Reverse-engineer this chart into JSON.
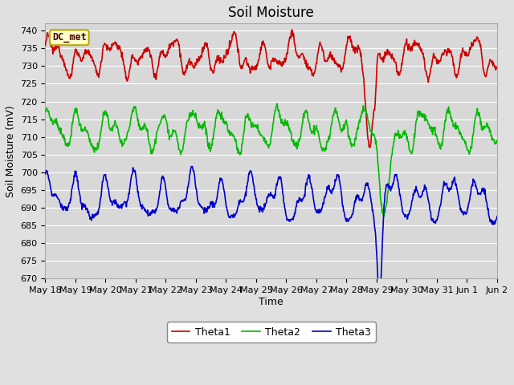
{
  "title": "Soil Moisture",
  "xlabel": "Time",
  "ylabel": "Soil Moisture (mV)",
  "ylim": [
    670,
    742
  ],
  "yticks": [
    670,
    675,
    680,
    685,
    690,
    695,
    700,
    705,
    710,
    715,
    720,
    725,
    730,
    735,
    740
  ],
  "background_color": "#e0e0e0",
  "plot_bg_color": "#d8d8d8",
  "grid_color": "#ffffff",
  "annotation_text": "DC_met",
  "annotation_bg": "#ffffcc",
  "annotation_border": "#bbaa00",
  "legend_entries": [
    "Theta1",
    "Theta2",
    "Theta3"
  ],
  "line_colors": [
    "#cc0000",
    "#00bb00",
    "#0000cc"
  ],
  "line_width": 1.2,
  "title_fontsize": 12,
  "label_fontsize": 9,
  "tick_fontsize": 8,
  "x_tick_labels": [
    "May 18",
    "May 19",
    "May 20",
    "May 21",
    "May 22",
    "May 23",
    "May 24",
    "May 25",
    "May 26",
    "May 27",
    "May 28",
    "May 29",
    "May 30",
    "May 31",
    "Jun 1",
    "Jun 2"
  ],
  "num_points": 960,
  "figsize": [
    6.4,
    4.8
  ],
  "dpi": 100
}
